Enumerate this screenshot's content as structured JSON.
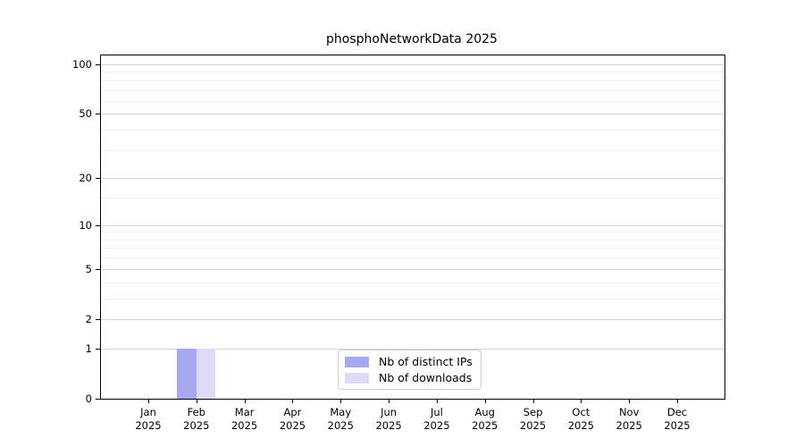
{
  "chart_data": {
    "type": "bar",
    "title": "phosphoNetworkData 2025",
    "categories": [
      "Jan 2025",
      "Feb 2025",
      "Mar 2025",
      "Apr 2025",
      "May 2025",
      "Jun 2025",
      "Jul 2025",
      "Aug 2025",
      "Sep 2025",
      "Oct 2025",
      "Nov 2025",
      "Dec 2025"
    ],
    "series": [
      {
        "name": "Nb of distinct IPs",
        "color": "#a8a8f2",
        "values": [
          0,
          1,
          0,
          0,
          0,
          0,
          0,
          0,
          0,
          0,
          0,
          0
        ]
      },
      {
        "name": "Nb of downloads",
        "color": "#dcdcf8",
        "values": [
          0,
          1,
          0,
          0,
          0,
          0,
          0,
          0,
          0,
          0,
          0,
          0
        ]
      }
    ],
    "xlabel": "",
    "ylabel": "",
    "yscale": "log1p",
    "ylim": [
      0,
      113.3
    ],
    "yticks": [
      0,
      1,
      2,
      5,
      10,
      20,
      50,
      100
    ],
    "minor_yticks": [
      3,
      4,
      6,
      7,
      8,
      9,
      15,
      30,
      40,
      60,
      70,
      80,
      90
    ],
    "grid": true,
    "legend_position": "lower-center",
    "colors": {
      "axis": "#000000",
      "grid_major": "#d4d4d4",
      "grid_minor": "#efefef",
      "legend_border": "#cccccc"
    }
  }
}
